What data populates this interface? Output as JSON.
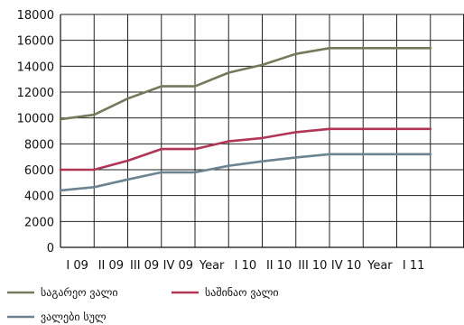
{
  "chart_data": {
    "type": "line",
    "categories": [
      "I 09",
      "II 09",
      "III 09",
      "IV 09",
      "Year",
      "I 10",
      "II 10",
      "III 10",
      "IV 10",
      "Year",
      "I 11",
      ""
    ],
    "x_count": 12,
    "ylim": [
      0,
      18000
    ],
    "yticks": [
      0,
      2000,
      4000,
      6000,
      8000,
      10000,
      12000,
      14000,
      16000,
      18000
    ],
    "grid": true,
    "legend_position": "bottom",
    "series": [
      {
        "name": "საგარეო ვალი",
        "color": "#727a5a",
        "points": [
          [
            0,
            9900
          ],
          [
            1,
            10250
          ],
          [
            2,
            11500
          ],
          [
            3,
            12450
          ],
          [
            4,
            12450
          ],
          [
            5,
            13500
          ],
          [
            6,
            14100
          ],
          [
            7,
            14950
          ],
          [
            8,
            15400
          ],
          [
            9,
            15400
          ],
          [
            10,
            15400
          ],
          [
            11,
            15400
          ]
        ]
      },
      {
        "name": "საშინაო ვალი",
        "color": "#b03557",
        "points": [
          [
            0,
            6000
          ],
          [
            1,
            6000
          ],
          [
            2,
            6700
          ],
          [
            3,
            7600
          ],
          [
            4,
            7600
          ],
          [
            5,
            8200
          ],
          [
            6,
            8450
          ],
          [
            7,
            8900
          ],
          [
            8,
            9150
          ],
          [
            9,
            9150
          ],
          [
            10,
            9150
          ],
          [
            11,
            9150
          ]
        ]
      },
      {
        "name": "ვალები სულ",
        "color": "#6c8391",
        "points": [
          [
            0,
            4400
          ],
          [
            1,
            4650
          ],
          [
            2,
            5250
          ],
          [
            3,
            5800
          ],
          [
            4,
            5800
          ],
          [
            5,
            6300
          ],
          [
            6,
            6650
          ],
          [
            7,
            6950
          ],
          [
            8,
            7200
          ],
          [
            9,
            7200
          ],
          [
            10,
            7200
          ],
          [
            11,
            7200
          ]
        ]
      }
    ]
  }
}
